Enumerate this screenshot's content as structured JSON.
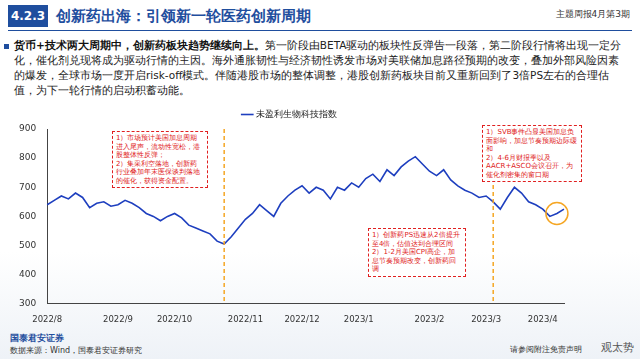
{
  "header": {
    "section": "4.2.3",
    "title": "创新药出海：引领新一轮医药创新周期",
    "issue": "主题周报4月第3期"
  },
  "body": {
    "lead": "货币+技术两大周期中，创新药板块趋势继续向上。",
    "text": "第一阶段由BETA驱动的板块性反弹告一段落，第二阶段行情将出现一定分化，催化剂兑现将成为驱动行情的主因。海外通胀韧性与经济韧性诱发市场对美联储加息路径预期的改变，叠加外部风险因素的爆发，全球市场一度开启risk-off模式。伴随港股市场的整体调整，港股创新药板块目前又重新回到了3倍PS左右的合理估值，为下一轮行情的启动积蓄动能。"
  },
  "chart_data": {
    "type": "line",
    "categories": [
      "2022/8",
      null,
      null,
      null,
      null,
      null,
      null,
      null,
      null,
      null,
      "2022/9",
      null,
      null,
      null,
      null,
      null,
      null,
      null,
      "2022/10",
      null,
      null,
      null,
      null,
      null,
      null,
      null,
      null,
      null,
      "2022/11",
      null,
      null,
      null,
      null,
      null,
      null,
      null,
      "2022/12",
      null,
      null,
      null,
      null,
      null,
      null,
      null,
      "2023/1",
      null,
      null,
      null,
      null,
      null,
      null,
      null,
      null,
      null,
      "2023/2",
      null,
      null,
      null,
      null,
      null,
      null,
      null,
      "2023/3",
      null,
      null,
      null,
      null,
      null,
      null,
      null,
      "2023/4",
      null,
      null,
      null
    ],
    "series": [
      {
        "name": "未盈利生物科技指数",
        "color": "#1e3fbf",
        "line_style": "solid",
        "values": [
          640,
          655,
          670,
          660,
          680,
          665,
          630,
          645,
          650,
          635,
          640,
          655,
          645,
          630,
          610,
          600,
          585,
          600,
          610,
          595,
          570,
          560,
          550,
          540,
          515,
          505,
          530,
          560,
          590,
          610,
          640,
          620,
          600,
          645,
          670,
          690,
          705,
          680,
          700,
          690,
          660,
          700,
          690,
          715,
          700,
          730,
          745,
          720,
          760,
          740,
          770,
          790,
          805,
          780,
          755,
          740,
          760,
          725,
          705,
          690,
          680,
          665,
          670,
          650,
          625,
          665,
          700,
          680,
          650,
          640,
          625,
          600,
          610,
          625
        ]
      }
    ],
    "ylim": [
      300,
      900
    ],
    "yticks": [
      300,
      400,
      500,
      600,
      700,
      800,
      900
    ],
    "grid": false,
    "legend": "top",
    "event_lines": [
      {
        "index": 25,
        "color": "#f5a623",
        "line_style": "dashed"
      },
      {
        "index": 63,
        "color": "#f5a623",
        "line_style": "dashed"
      }
    ],
    "annotations": [
      {
        "color": "#e02020",
        "lines": [
          "1）市场预计美国加息周期进入尾声，流动性宽松，港股整体性反弹；",
          "2）集采利空落地，创新药行业叠加年末医保谈判落地的催化，获得资金配置。"
        ]
      },
      {
        "color": "#e02020",
        "lines": [
          "1）创新药PS迅速从2倍提升至4倍，估值达到合理区间",
          "2）1-2月美国CPI高企，加息节奏预期改变，创新药回调"
        ]
      },
      {
        "color": "#e02020",
        "lines": [
          "1）SVB事件凸显美国加息负面影响，加息节奏预期边际缓和",
          "2）4-6月财报季以及AACR+ASCO会议召开，为催化剂密集的窗口期"
        ]
      }
    ]
  },
  "footer": {
    "logo": "国泰君安证券",
    "source": "数据来源：Wind，国泰君安证券研究",
    "disclaimer": "请参阅附注免责声明",
    "watermark": "观太势"
  }
}
